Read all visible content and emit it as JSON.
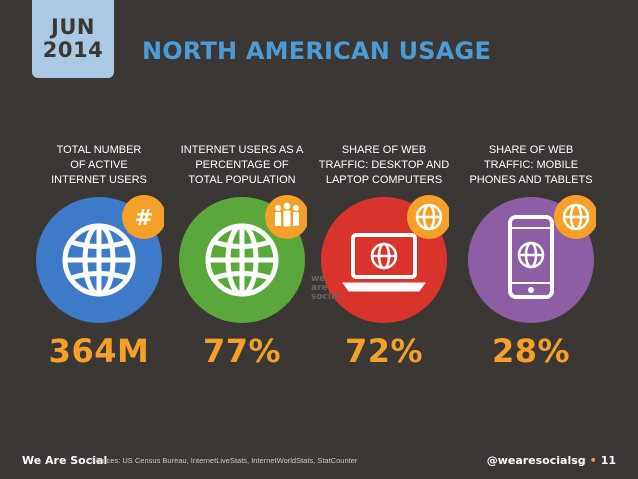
{
  "header": {
    "month": "JUN",
    "year": "2014",
    "title": "NORTH AMERICAN USAGE"
  },
  "colors": {
    "background": "#3a3734",
    "accent": "#f5a028",
    "title": "#4d9bd5",
    "badge": "#a9c9e5"
  },
  "stats": [
    {
      "label_lines": [
        "TOTAL NUMBER",
        "OF ACTIVE",
        "INTERNET USERS"
      ],
      "value": "364M",
      "color": "#3d7ac7",
      "icon": "globe-icon",
      "badge": "#"
    },
    {
      "label_lines": [
        "INTERNET USERS AS A",
        "PERCENTAGE OF",
        "TOTAL POPULATION"
      ],
      "value": "77%",
      "color": "#5aa83c",
      "icon": "globe-icon",
      "badge": "people-icon"
    },
    {
      "label_lines": [
        "SHARE OF WEB",
        "TRAFFIC: DESKTOP AND",
        "LAPTOP COMPUTERS"
      ],
      "value": "72%",
      "color": "#d9342b",
      "icon": "laptop-icon",
      "badge": "globe-icon"
    },
    {
      "label_lines": [
        "SHARE OF WEB",
        "TRAFFIC: MOBILE",
        "PHONES AND TABLETS"
      ],
      "value": "28%",
      "color": "#8d5ea4",
      "icon": "phone-icon",
      "badge": "globe-icon"
    }
  ],
  "watermark": [
    "we",
    "are",
    "social"
  ],
  "footer": {
    "brand": "We Are Social",
    "sources": "•  Sources: US Census Bureau, InternetLiveStats, InternetWorldStats, StatCounter",
    "handle": "@wearesocialsg",
    "separator": "•",
    "page": "11"
  }
}
